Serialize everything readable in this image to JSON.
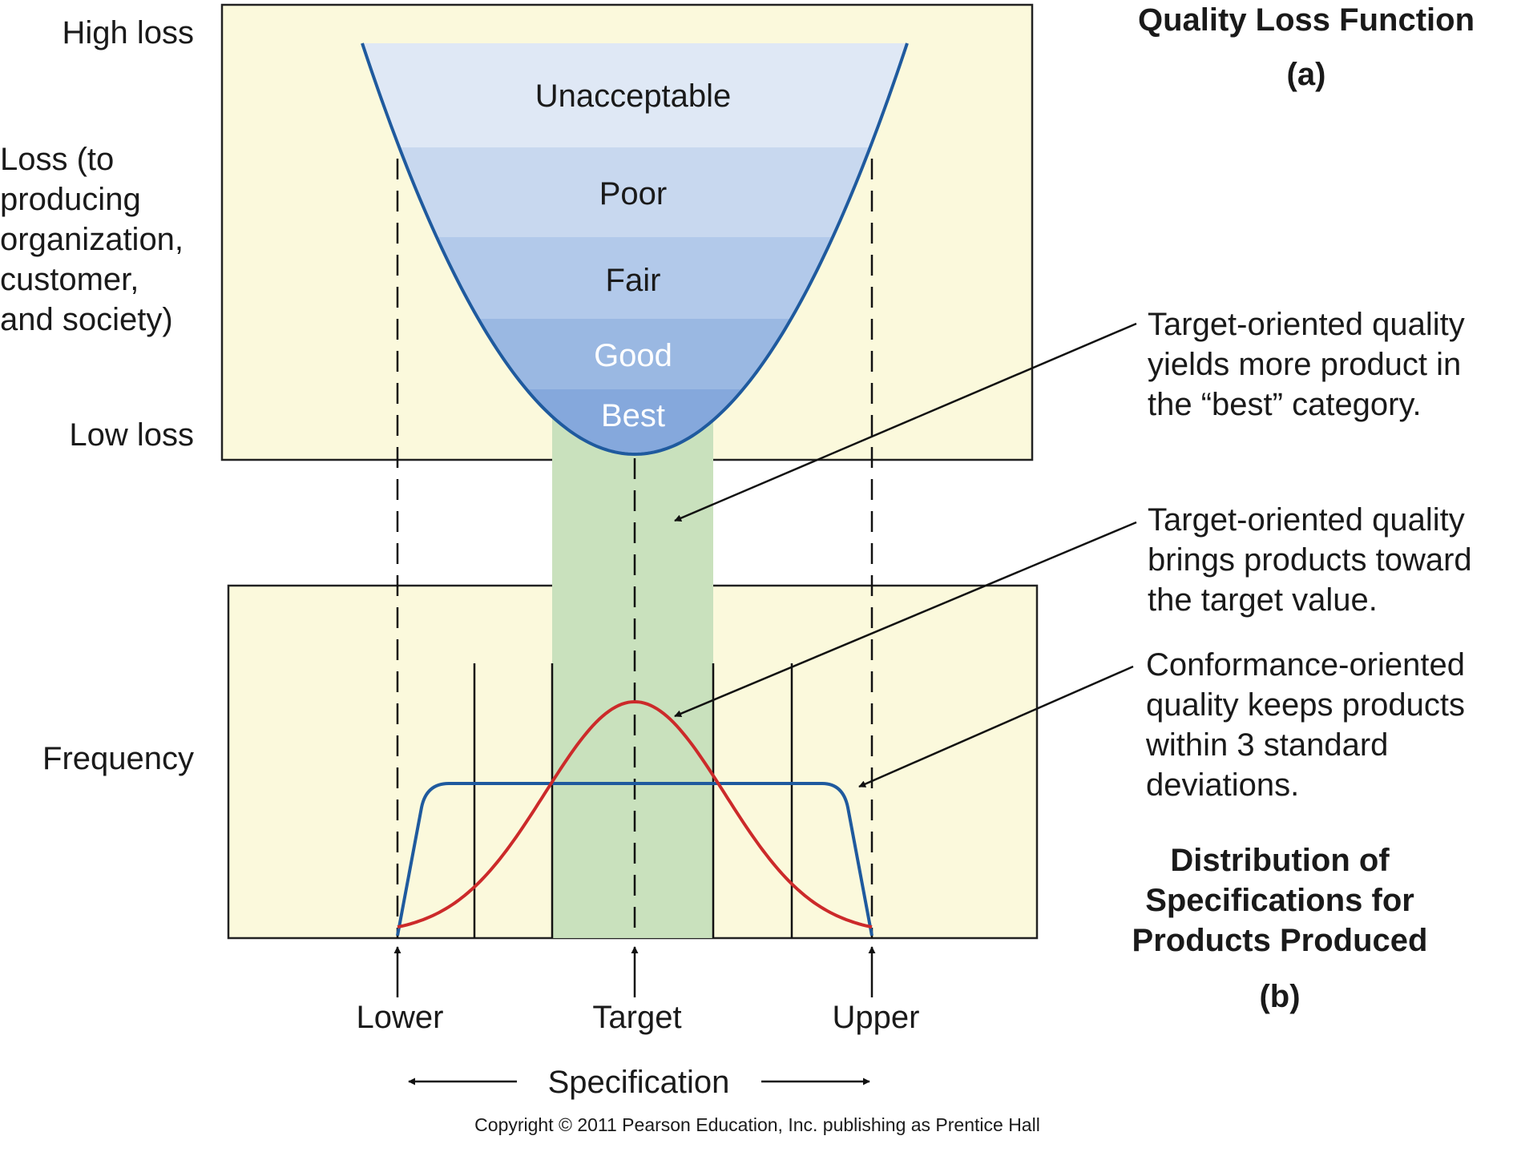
{
  "panel_a": {
    "title": "Quality Loss Function",
    "tag": "(a)",
    "y_top_label": "High loss",
    "y_axis_label": [
      "Loss (to",
      "producing",
      "organization,",
      "customer,",
      "and society)"
    ],
    "y_bottom_label": "Low loss",
    "bands": [
      "Unacceptable",
      "Poor",
      "Fair",
      "Good",
      "Best"
    ],
    "band_colors": [
      "#dfe8f5",
      "#c8d8ef",
      "#b2c9ea",
      "#9ab8e2",
      "#85a8dc"
    ],
    "curve_color": "#1f5a9e"
  },
  "panel_b": {
    "title": [
      "Distribution of",
      "Specifications for",
      "Products Produced"
    ],
    "tag": "(b)",
    "y_axis_label": "Frequency",
    "target_curve_color": "#cc2a2a",
    "conformance_curve_color": "#1f5a9e"
  },
  "spec_axis": {
    "lower": "Lower",
    "target": "Target",
    "upper": "Upper",
    "label": "Specification"
  },
  "annotations": {
    "best_category": [
      "Target-oriented quality",
      "yields more product in",
      "the “best” category."
    ],
    "toward_target": [
      "Target-oriented quality",
      "brings products toward",
      "the target value."
    ],
    "conformance": [
      "Conformance-oriented",
      "quality keeps products",
      "within 3 standard",
      "deviations."
    ]
  },
  "colors": {
    "panel_bg": "#fbf9dc",
    "green_band": "#c9e1bd"
  },
  "copyright": "Copyright © 2011 Pearson Education, Inc. publishing as Prentice Hall"
}
